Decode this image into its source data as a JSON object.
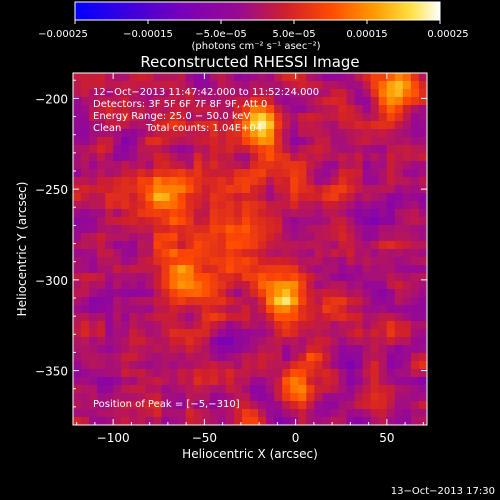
{
  "chart_data": {
    "type": "heatmap",
    "title": "Reconstructed RHESSI Image",
    "xlabel": "Heliocentric X (arcsec)",
    "ylabel": "Heliocentric Y (arcsec)",
    "xlim": [
      -122,
      72
    ],
    "ylim": [
      -380,
      -186
    ],
    "x_ticks": [
      -100,
      -50,
      0,
      50
    ],
    "y_ticks": [
      -200,
      -250,
      -300,
      -350
    ],
    "x_tick_labels": [
      "−100",
      "−50",
      "0",
      "50"
    ],
    "y_tick_labels": [
      "−200",
      "−250",
      "−300",
      "−350"
    ],
    "colorbar": {
      "range": [
        -0.00025,
        0.00025
      ],
      "ticks": [
        -0.00025,
        -0.00015,
        -5e-05,
        5e-05,
        0.00015,
        0.00025
      ],
      "tick_labels": [
        "−0.00025",
        "−0.00015",
        "−5.0e−05",
        "5.0e−05",
        "0.00015",
        "0.00025"
      ],
      "unit_label": "(photons cm⁻² s⁻¹ asec⁻²)",
      "colors": [
        "#0000ff",
        "#5a00d0",
        "#8a0aa0",
        "#c01a4a",
        "#ff3a00",
        "#ff8c00",
        "#ffd000",
        "#ffffff"
      ]
    },
    "grid": false,
    "annotations": [
      "12−Oct−2013 11:47:42.000 to 11:52:24.000",
      "Detectors: 3F 5F 6F 7F 8F 9F, Att 0",
      "Energy Range: 25.0 − 50.0 keV",
      "Clean",
      "Total counts: 1.04E+04"
    ],
    "peak_label": "Position of Peak = [−5,−310]",
    "peak_position": [
      -5,
      -310
    ],
    "bright_sources": [
      {
        "x": -5,
        "y": -310,
        "value": 0.00025
      },
      {
        "x": -20,
        "y": -215,
        "value": 0.00022
      },
      {
        "x": -75,
        "y": -255,
        "value": 0.00021
      },
      {
        "x": 55,
        "y": -195,
        "value": 0.00022
      },
      {
        "x": -60,
        "y": -300,
        "value": 0.00018
      },
      {
        "x": 0,
        "y": -355,
        "value": 0.00016
      }
    ]
  },
  "timestamp": "13−Oct−2013 17:30"
}
